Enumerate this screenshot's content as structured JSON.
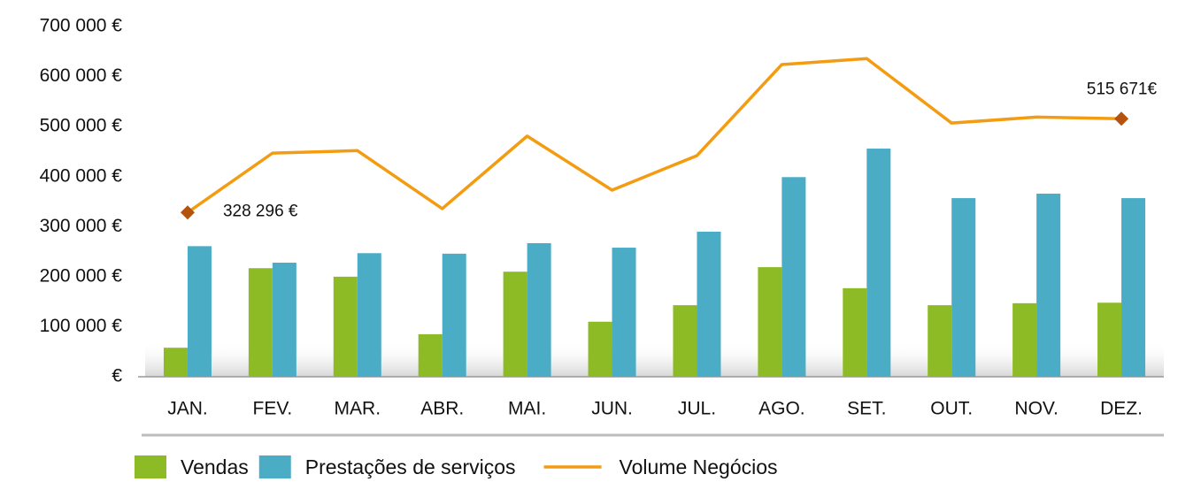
{
  "chart_data": {
    "type": "bar_line",
    "categories": [
      "JAN.",
      "FEV.",
      "MAR.",
      "ABR.",
      "MAI.",
      "JUN.",
      "JUL.",
      "AGO.",
      "SET.",
      "OUT.",
      "NOV.",
      "DEZ."
    ],
    "series": [
      {
        "name": "Vendas",
        "type": "bar",
        "color": "#8dbb25",
        "values": [
          58000,
          217000,
          200000,
          85000,
          210000,
          110000,
          143000,
          219000,
          177000,
          143000,
          147000,
          148000
        ]
      },
      {
        "name": "Prestações de serviços",
        "type": "bar",
        "color": "#4bacc6",
        "values": [
          261000,
          228000,
          247000,
          246000,
          267000,
          258000,
          290000,
          399000,
          456000,
          357000,
          366000,
          357000
        ]
      },
      {
        "name": "Volume Negócios",
        "type": "line",
        "color": "#f39c12",
        "marker_color": "#b5520d",
        "values": [
          328296,
          447000,
          452000,
          336000,
          481000,
          373000,
          442000,
          624000,
          636000,
          507000,
          519000,
          515671
        ],
        "value_labels": [
          "328 296 €",
          null,
          null,
          null,
          null,
          null,
          null,
          null,
          null,
          null,
          null,
          "515 671€"
        ]
      }
    ],
    "ylim": [
      0,
      700000
    ],
    "yticks": [
      {
        "value": 0,
        "label": "€"
      },
      {
        "value": 100000,
        "label": "100 000 €"
      },
      {
        "value": 200000,
        "label": "200 000 €"
      },
      {
        "value": 300000,
        "label": "300 000 €"
      },
      {
        "value": 400000,
        "label": "400 000 €"
      },
      {
        "value": 500000,
        "label": "500 000 €"
      },
      {
        "value": 600000,
        "label": "600 000 €"
      },
      {
        "value": 700000,
        "label": "700 000 €"
      }
    ],
    "grid": false,
    "legend": "bottom"
  }
}
